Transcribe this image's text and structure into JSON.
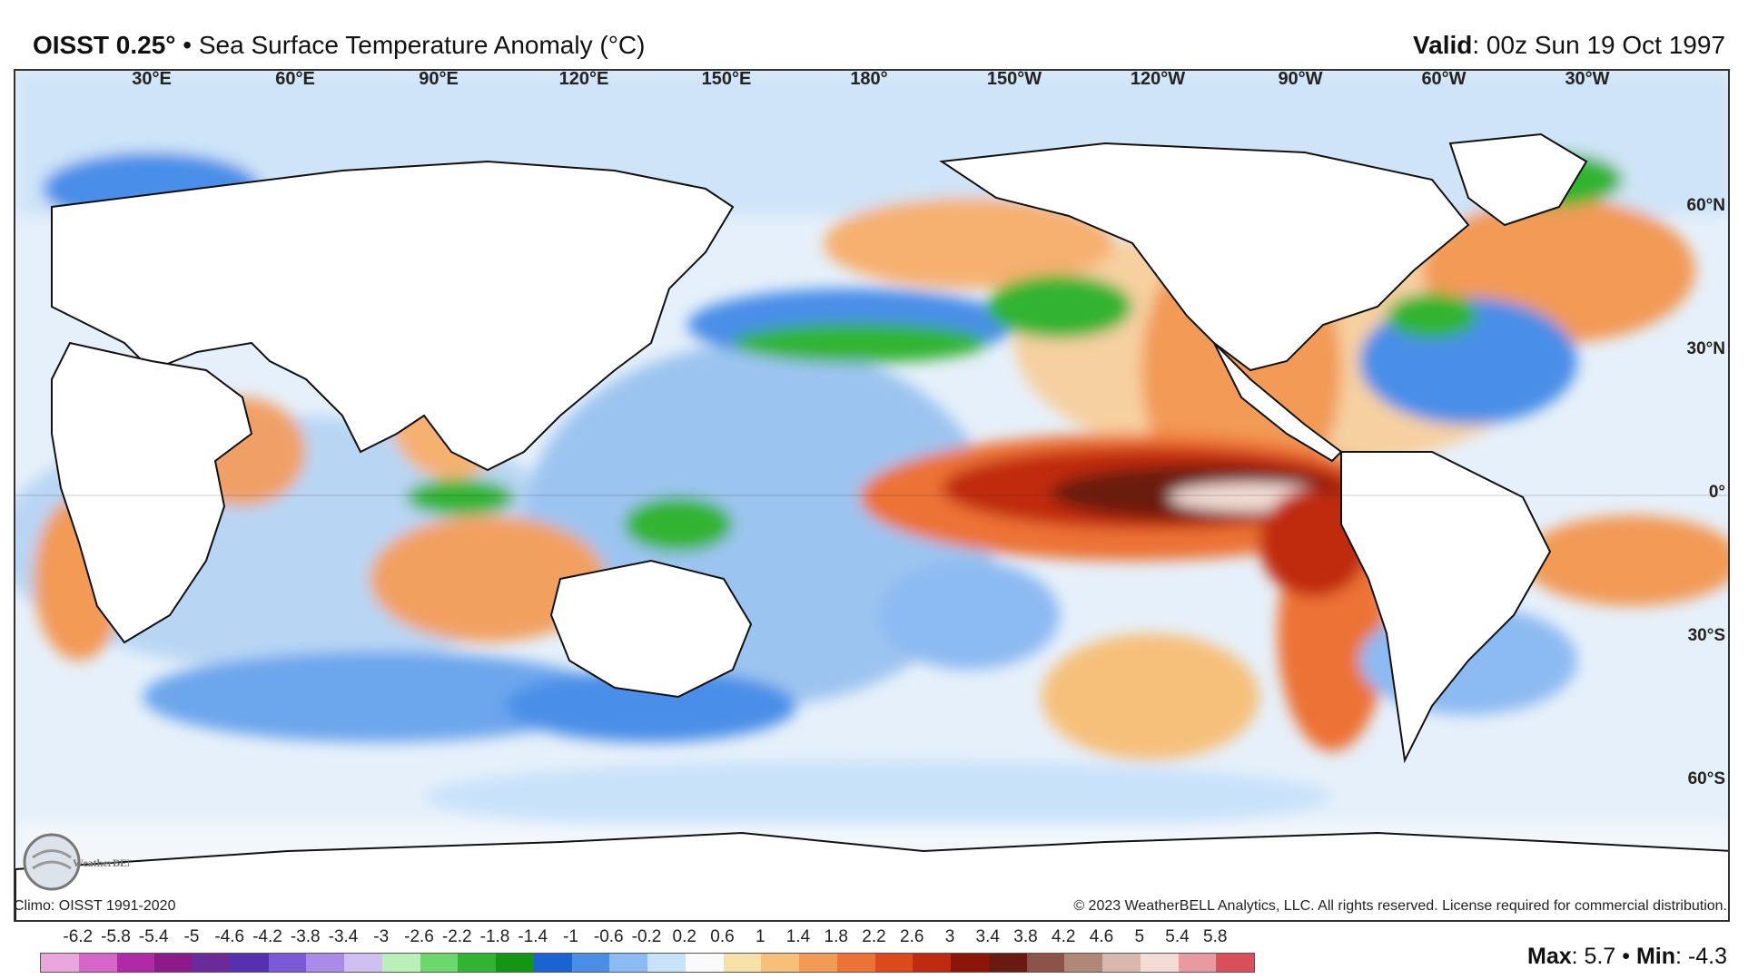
{
  "header": {
    "product": "OISST 0.25°",
    "separator": "•",
    "description": "Sea Surface Temperature Anomaly (°C)",
    "valid_label": "Valid",
    "valid_value": ": 00z Sun 19 Oct 1997"
  },
  "map": {
    "projection": "equirectangular",
    "longitude_labels": [
      "30°E",
      "60°E",
      "90°E",
      "120°E",
      "150°E",
      "180°",
      "150°W",
      "120°W",
      "90°W",
      "60°W",
      "30°W"
    ],
    "latitude_labels": [
      "60°N",
      "30°N",
      "0°",
      "30°S",
      "60°S"
    ]
  },
  "footer": {
    "climo": "Climo: OISST 1991-2020",
    "copyright": "© 2023 WeatherBELL Analytics, LLC. All rights reserved. License required for commercial distribution.",
    "logo_text": "WeatherBELL"
  },
  "colorbar": {
    "labels": [
      "-6.2",
      "-5.8",
      "-5.4",
      "-5",
      "-4.6",
      "-4.2",
      "-3.8",
      "-3.4",
      "-3",
      "-2.6",
      "-2.2",
      "-1.8",
      "-1.4",
      "-1",
      "-0.6",
      "-0.2",
      "0.2",
      "0.6",
      "1",
      "1.4",
      "1.8",
      "2.2",
      "2.6",
      "3",
      "3.4",
      "3.8",
      "4.2",
      "4.6",
      "5",
      "5.4",
      "5.8"
    ],
    "colors": [
      "#e8a6dc",
      "#d866c8",
      "#b02aa8",
      "#8c1a8a",
      "#6a2a9a",
      "#5530b0",
      "#7b5ad8",
      "#a98cea",
      "#d0c0f2",
      "#b8f0b8",
      "#6cd86c",
      "#32b432",
      "#149614",
      "#1a64d2",
      "#4a8ee8",
      "#8cbaf2",
      "#c8e2fa",
      "#fafafa",
      "#f6e2a8",
      "#f6c07a",
      "#f29a56",
      "#ec7236",
      "#dc4a1c",
      "#c02a0e",
      "#8c1408",
      "#6a1a10",
      "#8c5448",
      "#b08878",
      "#d8b8ac",
      "#f2dcd4",
      "#e89aa0",
      "#d8505a"
    ]
  },
  "stats": {
    "max_label": "Max",
    "max_value": ": 5.7",
    "separator": "•",
    "min_label": "Min",
    "min_value": ": -4.3"
  }
}
